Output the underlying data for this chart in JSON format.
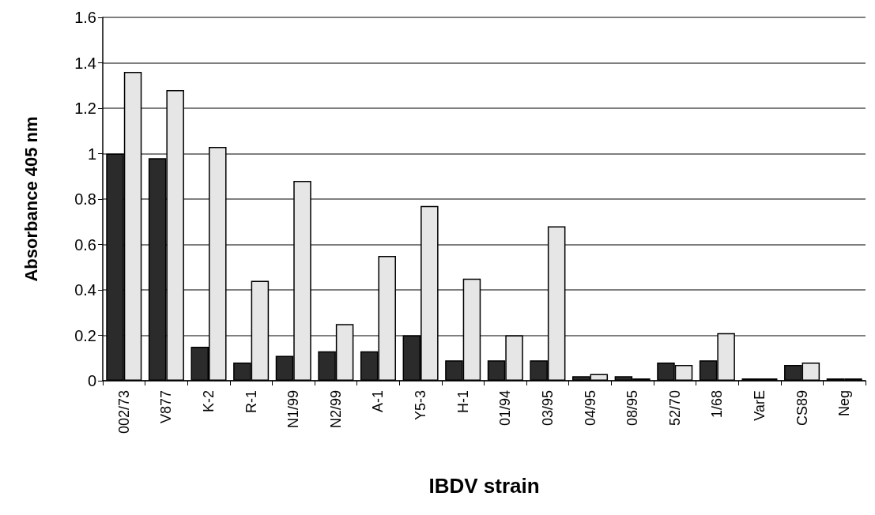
{
  "chart_data": {
    "type": "bar",
    "xlabel": "IBDV strain",
    "ylabel": "Absorbance 405 nm",
    "categories": [
      "002/73",
      "V877",
      "K-2",
      "R-1",
      "N1/99",
      "N2/99",
      "A-1",
      "Y5-3",
      "H-1",
      "01/94",
      "03/95",
      "04/95",
      "08/95",
      "52/70",
      "1/68",
      "VarE",
      "CS89",
      "Neg"
    ],
    "series": [
      {
        "color": "#2b2b2b",
        "values": [
          1.0,
          0.98,
          0.15,
          0.08,
          0.11,
          0.13,
          0.13,
          0.2,
          0.09,
          0.09,
          0.09,
          0.02,
          0.02,
          0.08,
          0.09,
          0.01,
          0.07,
          0.01
        ]
      },
      {
        "color": "#e6e6e6",
        "values": [
          1.36,
          1.28,
          1.03,
          0.44,
          0.88,
          0.25,
          0.55,
          0.77,
          0.45,
          0.2,
          0.68,
          0.03,
          0.01,
          0.07,
          0.21,
          0.01,
          0.08,
          0.01
        ]
      }
    ],
    "ylim": [
      0,
      1.6
    ],
    "yticks": [
      0,
      0.2,
      0.4,
      0.6,
      0.8,
      1,
      1.2,
      1.4,
      1.6
    ],
    "grid": "y"
  }
}
